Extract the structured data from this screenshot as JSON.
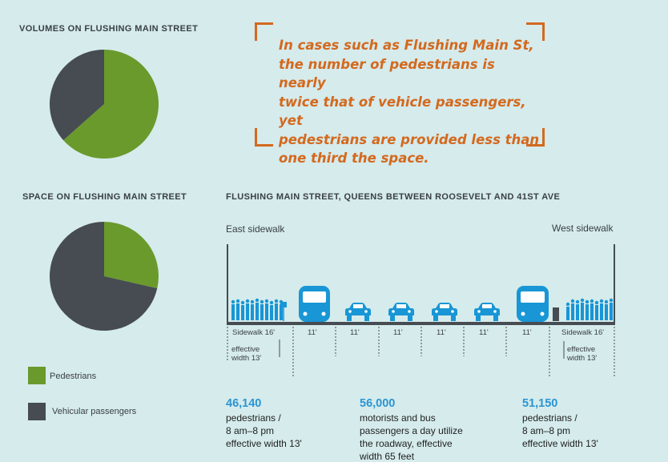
{
  "headings": {
    "volumes": "VOLUMES ON FLUSHING MAIN STREET",
    "space": "SPACE ON FLUSHING MAIN STREET",
    "section": "FLUSHING MAIN STREET, QUEENS BETWEEN ROOSEVELT AND 41ST AVE"
  },
  "quote": [
    "In cases such as Flushing Main St,",
    "the number of pedestrians is nearly",
    "twice that of vehicle passengers, yet",
    "pedestrians are provided less than",
    "one third the space."
  ],
  "legend": {
    "pedestrians": "Pedestrians",
    "vehicular": "Vehicular passengers"
  },
  "colors": {
    "pedestrians": "#6a9a2c",
    "vehicular": "#464c51",
    "accent": "#d4691e",
    "stat": "#2a95d3",
    "vehicle_icon": "#1896d5",
    "background": "#d5ebec"
  },
  "chart_data": [
    {
      "type": "pie",
      "title": "VOLUMES ON FLUSHING MAIN STREET",
      "categories": [
        "Pedestrians",
        "Vehicular passengers"
      ],
      "values": [
        97290,
        56000
      ]
    },
    {
      "type": "pie",
      "title": "SPACE ON FLUSHING MAIN STREET",
      "categories": [
        "Pedestrians",
        "Vehicular passengers"
      ],
      "values": [
        26,
        65
      ]
    }
  ],
  "street": {
    "east_label": "East sidewalk",
    "west_label": "West sidewalk",
    "lanes": [
      "Sidewalk 16'",
      "11'",
      "11'",
      "11'",
      "11'",
      "11'",
      "11'",
      "Sidewalk 16'"
    ],
    "effective_east": [
      "effective",
      "width 13'"
    ],
    "effective_west": [
      "effective",
      "width 13'"
    ]
  },
  "stats": [
    {
      "number": "46,140",
      "lines": [
        "pedestrians /",
        "8 am–8 pm",
        "effective width 13'"
      ]
    },
    {
      "number": "56,000",
      "lines": [
        "motorists and bus",
        "passengers a day utilize",
        "the roadway, effective",
        "width 65 feet"
      ]
    },
    {
      "number": "51,150",
      "lines": [
        "pedestrians /",
        "8 am–8 pm",
        "effective width 13'"
      ]
    }
  ]
}
